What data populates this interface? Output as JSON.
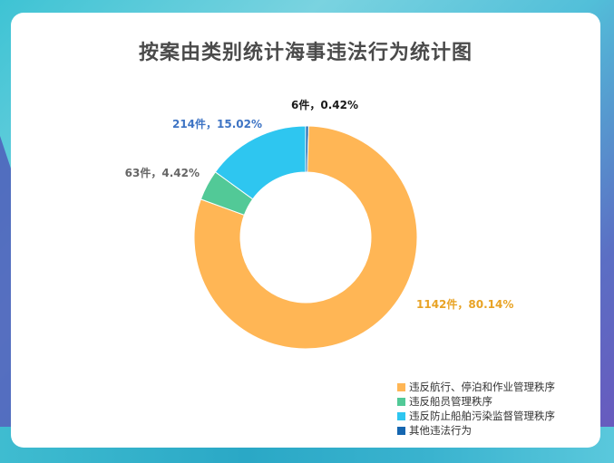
{
  "chart_data": {
    "type": "pie",
    "title": "按案由类别统计海事违法行为统计图",
    "slices": [
      {
        "name": "违反航行、停泊和作业管理秩序",
        "count": 1142,
        "percent": 80.14,
        "label": "1142件，80.14%",
        "color": "#FFB655"
      },
      {
        "name": "违反船员管理秩序",
        "count": 63,
        "percent": 4.42,
        "label": "63件，4.42%",
        "color": "#52C997"
      },
      {
        "name": "违反防止船舶污染监督管理秩序",
        "count": 214,
        "percent": 15.02,
        "label": "214件，15.02%",
        "color": "#2EC6F0"
      },
      {
        "name": "其他违法行为",
        "count": 6,
        "percent": 0.42,
        "label": "6件，0.42%",
        "color": "#1566B0"
      }
    ],
    "label_colors": [
      "#E8A325",
      "#666666",
      "#3E74C4",
      "#1a1a1a"
    ],
    "legend_position": "bottom-right"
  }
}
